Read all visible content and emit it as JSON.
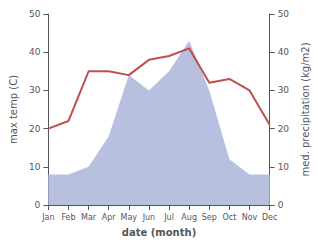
{
  "chart_data": {
    "type": "line",
    "categories": [
      "Jan",
      "Feb",
      "Mar",
      "Apr",
      "May",
      "Jun",
      "Jul",
      "Aug",
      "Sep",
      "Oct",
      "Nov",
      "Dec"
    ],
    "xlabel": "date (month)",
    "ylabel": "max temp (C)",
    "y2label": "med. precipitation (kg/m2)",
    "ylim": [
      0,
      50
    ],
    "yticks": [
      0,
      10,
      20,
      30,
      40,
      50
    ],
    "y2lim": [
      0,
      50
    ],
    "y2ticks": [
      0,
      10,
      20,
      30,
      40,
      50
    ],
    "grid": false,
    "series": [
      {
        "type": "area",
        "axis": "y2",
        "color": "#b8c0e0",
        "values": [
          8,
          8,
          10,
          18,
          34,
          30,
          35,
          43,
          30,
          12,
          8,
          8
        ]
      },
      {
        "type": "line",
        "color": "#c0504d",
        "values": [
          20,
          22,
          35,
          35,
          34,
          38,
          39,
          41,
          32,
          33,
          30,
          21
        ]
      }
    ]
  }
}
